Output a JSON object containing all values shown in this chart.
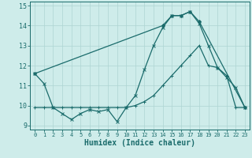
{
  "xlabel": "Humidex (Indice chaleur)",
  "xlim": [
    -0.5,
    23.5
  ],
  "ylim": [
    8.8,
    15.2
  ],
  "yticks": [
    9,
    10,
    11,
    12,
    13,
    14,
    15
  ],
  "xticks": [
    0,
    1,
    2,
    3,
    4,
    5,
    6,
    7,
    8,
    9,
    10,
    11,
    12,
    13,
    14,
    15,
    16,
    17,
    18,
    19,
    20,
    21,
    22,
    23
  ],
  "bg_color": "#ceecea",
  "grid_color": "#aed4d2",
  "line_color": "#1a6b6b",
  "line1_x": [
    0,
    1,
    2,
    3,
    4,
    5,
    6,
    7,
    8,
    9,
    10,
    11,
    12,
    13,
    14,
    15,
    16,
    17,
    18,
    19,
    20,
    21,
    22,
    23
  ],
  "line1_y": [
    11.6,
    11.1,
    9.9,
    9.6,
    9.3,
    9.6,
    9.8,
    9.7,
    9.8,
    9.2,
    9.9,
    10.5,
    11.8,
    13.0,
    13.9,
    14.5,
    14.5,
    14.7,
    14.1,
    13.0,
    11.9,
    11.4,
    10.9,
    9.9
  ],
  "line2_x": [
    0,
    1,
    2,
    3,
    4,
    5,
    6,
    7,
    8,
    9,
    10,
    11,
    12,
    13,
    14,
    15,
    16,
    17,
    18,
    19,
    20,
    21,
    22,
    23
  ],
  "line2_y": [
    9.9,
    9.9,
    9.9,
    9.9,
    9.9,
    9.9,
    9.9,
    9.9,
    9.9,
    9.9,
    9.9,
    10.0,
    10.2,
    10.5,
    11.0,
    11.5,
    12.0,
    12.5,
    13.0,
    12.0,
    11.9,
    11.5,
    9.9,
    9.9
  ],
  "line3_x": [
    0,
    14,
    15,
    16,
    17,
    18,
    23
  ],
  "line3_y": [
    11.6,
    14.0,
    14.5,
    14.5,
    14.7,
    14.2,
    9.9
  ],
  "xlabel_fontsize": 7,
  "tick_fontsize": 6,
  "linewidth": 0.9,
  "markersize": 2.5
}
